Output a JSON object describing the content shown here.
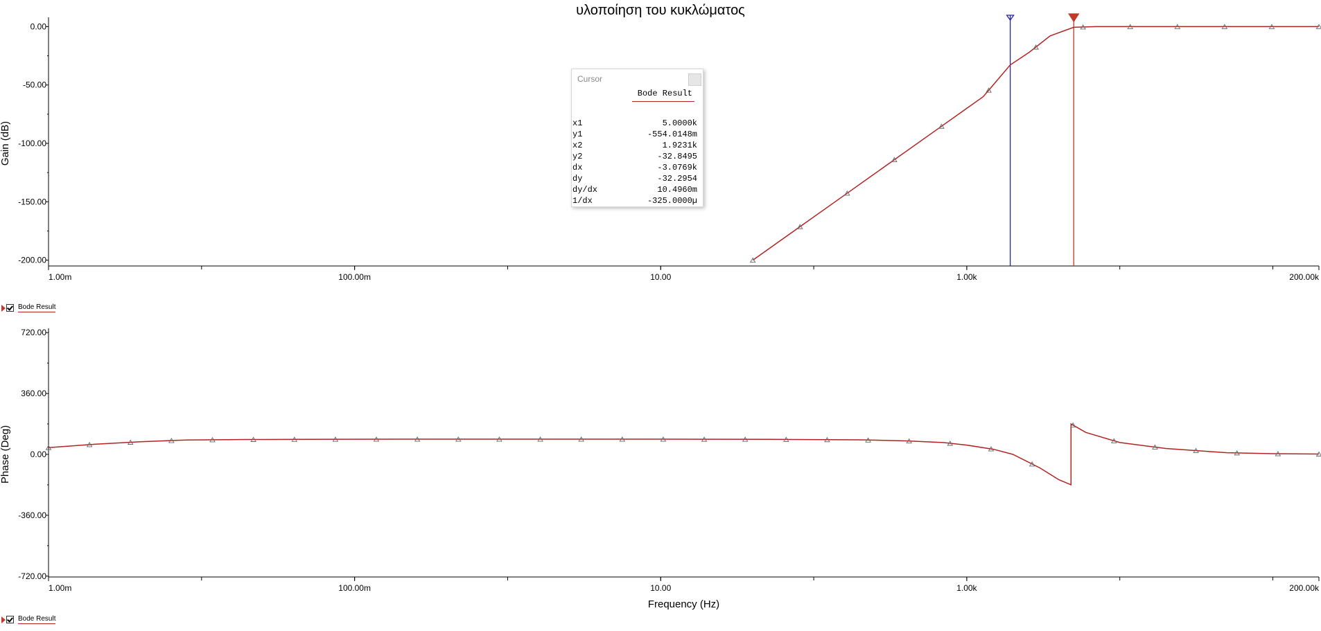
{
  "title": "υλοποίηση του κυκλώματος",
  "colors": {
    "trace": "#b22222",
    "cursor1": "#2222aa",
    "cursor2": "#c0392b",
    "axis": "#000000"
  },
  "legend": [
    {
      "label": "Bode Result"
    },
    {
      "label": "Bode Result"
    }
  ],
  "cursor_panel": {
    "title": "Cursor",
    "series": "Bode Result",
    "rows": [
      {
        "label": "x1",
        "value": "5.0000k"
      },
      {
        "label": "y1",
        "value": "-554.0148m"
      },
      {
        "label": "x2",
        "value": "1.9231k"
      },
      {
        "label": "y2",
        "value": "-32.8495"
      },
      {
        "label": "dx",
        "value": "-3.0769k"
      },
      {
        "label": "dy",
        "value": "-32.2954"
      },
      {
        "label": "dy/dx",
        "value": "10.4960m"
      },
      {
        "label": "1/dx",
        "value": "-325.0000µ"
      }
    ]
  },
  "chart_data": [
    {
      "type": "line",
      "name": "gain",
      "ylabel": "Gain (dB)",
      "xlabel": "",
      "xscale": "log",
      "xlim": [
        0.001,
        200000
      ],
      "ylim": [
        -205,
        5
      ],
      "x_ticks": [
        {
          "value": 0.001,
          "label": "1.00m"
        },
        {
          "value": 0.1,
          "label": "100.00m"
        },
        {
          "value": 10,
          "label": "10.00"
        },
        {
          "value": 1000,
          "label": "1.00k"
        },
        {
          "value": 200000,
          "label": "200.00k"
        }
      ],
      "y_ticks": [
        {
          "value": 0,
          "label": "0.00"
        },
        {
          "value": -50,
          "label": "-50.00"
        },
        {
          "value": -100,
          "label": "-100.00"
        },
        {
          "value": -150,
          "label": "-150.00"
        },
        {
          "value": -200,
          "label": "-200.00"
        }
      ],
      "cursors": [
        {
          "x": 1923.1,
          "y": -32.85
        },
        {
          "x": 5000,
          "y": -0.554
        }
      ],
      "series": [
        {
          "x": [
            40,
            80,
            160,
            320,
            640,
            1280,
            1923,
            2560,
            3500,
            5000,
            7000,
            10000,
            20000,
            40000,
            80000,
            200000
          ],
          "y": [
            -200.0,
            -172.0,
            -144.0,
            -116.0,
            -88.0,
            -60.0,
            -32.85,
            -22.0,
            -8.0,
            -0.554,
            0.0,
            0.0,
            0.0,
            0.0,
            0.0,
            0.0
          ]
        }
      ]
    },
    {
      "type": "line",
      "name": "phase",
      "ylabel": "Phase (Deg)",
      "xlabel": "Frequency (Hz)",
      "xscale": "log",
      "xlim": [
        0.001,
        200000
      ],
      "ylim": [
        -725,
        725
      ],
      "x_ticks": [
        {
          "value": 0.001,
          "label": "1.00m"
        },
        {
          "value": 0.1,
          "label": "100.00m"
        },
        {
          "value": 10,
          "label": "10.00"
        },
        {
          "value": 1000,
          "label": "1.00k"
        },
        {
          "value": 200000,
          "label": "200.00k"
        }
      ],
      "y_ticks": [
        {
          "value": 720,
          "label": "720.00"
        },
        {
          "value": 360,
          "label": "360.00"
        },
        {
          "value": 0,
          "label": "0.00"
        },
        {
          "value": -360,
          "label": "-360.00"
        },
        {
          "value": -720,
          "label": "-720.00"
        }
      ],
      "series": [
        {
          "x": [
            0.001,
            0.002,
            0.004,
            0.008,
            0.02,
            0.05,
            0.2,
            1,
            10,
            50,
            200,
            400,
            700,
            1000,
            1500,
            2000,
            3000,
            4000,
            4800,
            4801,
            6000,
            10000,
            20000,
            50000,
            100000,
            200000
          ],
          "y": [
            40,
            60,
            75,
            85,
            88,
            89,
            90,
            90,
            90,
            89,
            86,
            80,
            70,
            55,
            30,
            0,
            -80,
            -150,
            -180,
            180,
            130,
            70,
            35,
            10,
            4,
            2
          ]
        }
      ]
    }
  ]
}
